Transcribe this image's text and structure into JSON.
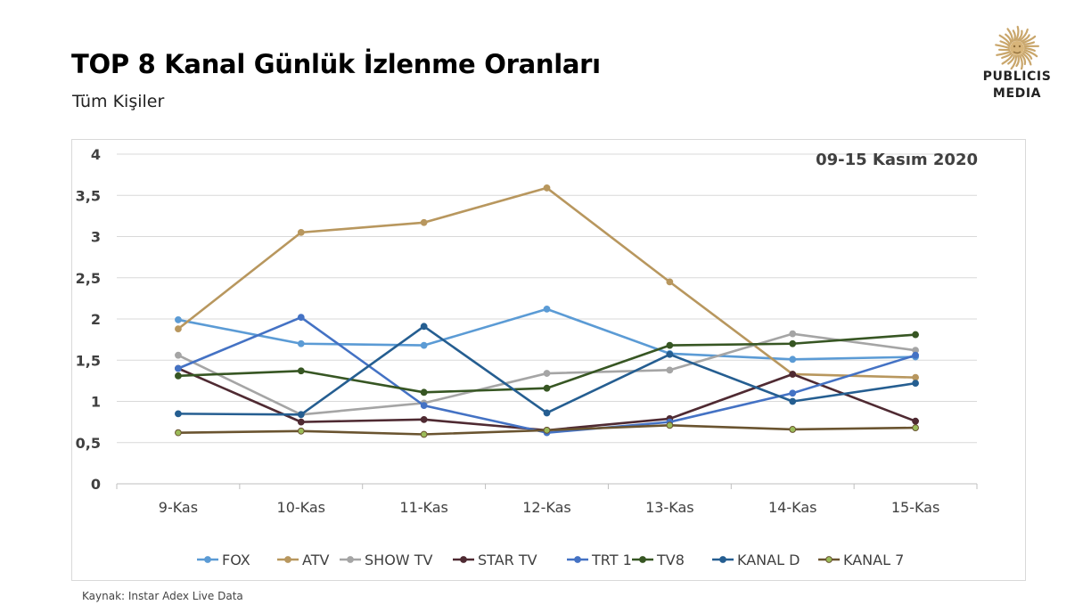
{
  "header": {
    "title": "TOP 8 Kanal Günlük İzlenme Oranları",
    "subtitle": "Tüm Kişiler"
  },
  "logo": {
    "line1": "PUBLICIS",
    "line2": "MEDIA",
    "color": "#c9a66b"
  },
  "footer": {
    "source": "Kaynak: Instar  Adex Live Data"
  },
  "chart_data": {
    "type": "line",
    "title": "",
    "annotation": "09-15 Kasım 2020",
    "xlabel": "",
    "ylabel": "",
    "categories": [
      "9-Kas",
      "10-Kas",
      "11-Kas",
      "12-Kas",
      "13-Kas",
      "14-Kas",
      "15-Kas"
    ],
    "ylim": [
      0,
      4
    ],
    "yticks": [
      0,
      0.5,
      1,
      1.5,
      2,
      2.5,
      3,
      3.5,
      4
    ],
    "ytick_labels": [
      "0",
      "0,5",
      "1",
      "1,5",
      "2",
      "2,5",
      "3",
      "3,5",
      "4"
    ],
    "grid": true,
    "legend_position": "bottom",
    "series": [
      {
        "name": "FOX",
        "color": "#5b9bd5",
        "values": [
          1.99,
          1.7,
          1.68,
          2.12,
          1.58,
          1.51,
          1.54
        ]
      },
      {
        "name": "ATV",
        "color": "#b8975e",
        "values": [
          1.88,
          3.05,
          3.17,
          3.59,
          2.45,
          1.33,
          1.29
        ]
      },
      {
        "name": "SHOW TV",
        "color": "#a5a5a5",
        "values": [
          1.56,
          0.84,
          0.98,
          1.34,
          1.38,
          1.82,
          1.62
        ]
      },
      {
        "name": "STAR TV",
        "color": "#4f2a32",
        "values": [
          1.4,
          0.75,
          0.78,
          0.65,
          0.79,
          1.33,
          0.76
        ]
      },
      {
        "name": "TRT 1",
        "color": "#4472c4",
        "values": [
          1.4,
          2.02,
          0.95,
          0.62,
          0.75,
          1.1,
          1.56
        ]
      },
      {
        "name": "TV8",
        "color": "#375623",
        "values": [
          1.31,
          1.37,
          1.11,
          1.16,
          1.68,
          1.7,
          1.81
        ]
      },
      {
        "name": "KANAL D",
        "color": "#255e91",
        "values": [
          0.85,
          0.84,
          1.91,
          0.86,
          1.57,
          1.0,
          1.22
        ]
      },
      {
        "name": "KANAL 7",
        "color": "#6a5430",
        "marker_fill": "#9bbb59",
        "values": [
          0.62,
          0.64,
          0.6,
          0.65,
          0.71,
          0.66,
          0.68
        ]
      }
    ]
  }
}
